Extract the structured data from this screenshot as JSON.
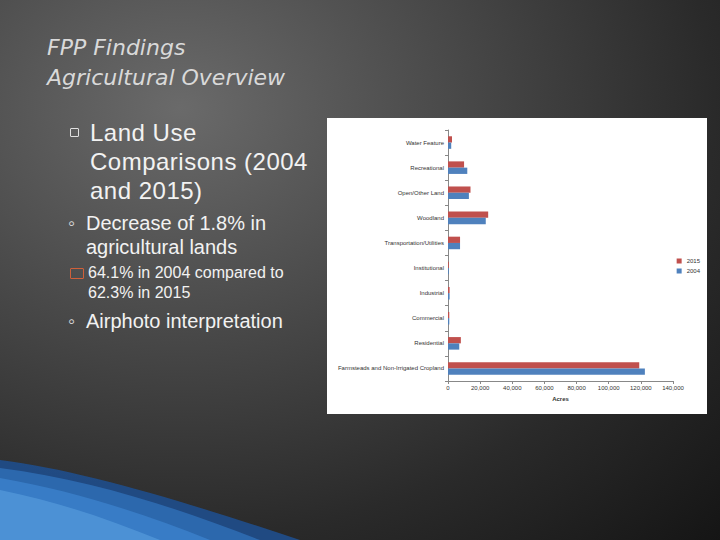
{
  "slide": {
    "title": [
      "FPP Findings",
      "Agricultural Overview"
    ],
    "bullets": [
      {
        "text": "Land Use Comparisons (2004 and 2015)",
        "children": [
          {
            "text": "Decrease of 1.8% in agricultural lands",
            "children": [
              {
                "text": "64.1% in 2004 compared to 62.3% in 2015"
              }
            ]
          },
          {
            "text": "Airphoto interpretation"
          }
        ]
      }
    ]
  },
  "chart_data": {
    "type": "bar",
    "orientation": "horizontal",
    "categories": [
      "Water Feature",
      "Recreational",
      "Open/Other Land",
      "Woodland",
      "Transportation/Utilities",
      "Institutional",
      "Industrial",
      "Commercial",
      "Residential",
      "Farmsteads and Non-Irrigated Cropland"
    ],
    "series": [
      {
        "name": "2015",
        "color": "#c0504d",
        "values": [
          2500,
          10000,
          14000,
          25000,
          7500,
          500,
          1000,
          800,
          8000,
          119000
        ]
      },
      {
        "name": "2004",
        "color": "#4f81bd",
        "values": [
          2000,
          12000,
          13000,
          23500,
          7500,
          500,
          1000,
          800,
          7000,
          122500
        ]
      }
    ],
    "x_label": "Acres",
    "xlim": [
      0,
      140000
    ],
    "xticks": [
      0,
      {
        "value": 20000,
        "label": "20,000"
      },
      {
        "value": 40000,
        "label": "40,000"
      },
      {
        "value": 60000,
        "label": "60,000"
      },
      {
        "value": 80000,
        "label": "80,000"
      },
      {
        "value": 100000,
        "label": "100,000"
      },
      {
        "value": 120000,
        "label": "120,000"
      },
      {
        "value": 140000,
        "label": "140,000"
      }
    ],
    "grid": false,
    "legend": "right"
  }
}
